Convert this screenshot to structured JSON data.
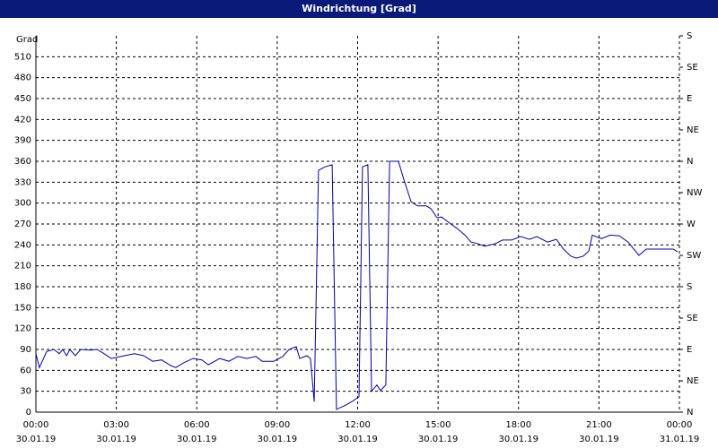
{
  "chart_data": {
    "type": "line",
    "title": "Windrichtung [Grad]",
    "ylabel": "Grad",
    "color": "#0000b0",
    "grid": true,
    "xlim": [
      0,
      24
    ],
    "xticks": [
      {
        "value": 0,
        "label": "00:00"
      },
      {
        "value": 3,
        "label": "03:00"
      },
      {
        "value": 6,
        "label": "06:00"
      },
      {
        "value": 9,
        "label": "09:00"
      },
      {
        "value": 12,
        "label": "12:00"
      },
      {
        "value": 15,
        "label": "15:00"
      },
      {
        "value": 18,
        "label": "18:00"
      },
      {
        "value": 21,
        "label": "21:00"
      },
      {
        "value": 24,
        "label": "00:00"
      }
    ],
    "xtick_dates": [
      "30.01.19",
      "30.01.19",
      "30.01.19",
      "30.01.19",
      "30.01.19",
      "30.01.19",
      "30.01.19",
      "30.01.19",
      "31.01.19"
    ],
    "ylim": [
      0,
      540
    ],
    "yticks": [
      0,
      30,
      60,
      90,
      120,
      150,
      180,
      210,
      240,
      270,
      300,
      330,
      360,
      390,
      420,
      450,
      480,
      510
    ],
    "y2lim": [
      0,
      540
    ],
    "y2ticks": [
      {
        "value": 0,
        "label": "N"
      },
      {
        "value": 45,
        "label": "NE"
      },
      {
        "value": 90,
        "label": "E"
      },
      {
        "value": 135,
        "label": "SE"
      },
      {
        "value": 180,
        "label": "S"
      },
      {
        "value": 225,
        "label": "SW"
      },
      {
        "value": 270,
        "label": "W"
      },
      {
        "value": 315,
        "label": "NW"
      },
      {
        "value": 360,
        "label": "N"
      },
      {
        "value": 405,
        "label": "NE"
      },
      {
        "value": 450,
        "label": "E"
      },
      {
        "value": 495,
        "label": "SE"
      },
      {
        "value": 540,
        "label": "S"
      }
    ],
    "x": [
      0,
      0.13,
      0.4,
      0.67,
      0.87,
      1.0,
      1.14,
      1.27,
      1.47,
      1.67,
      2.01,
      2.28,
      2.54,
      2.81,
      3.18,
      3.68,
      4.02,
      4.35,
      4.69,
      5.02,
      5.22,
      5.52,
      5.86,
      6.19,
      6.43,
      6.86,
      7.2,
      7.53,
      7.87,
      8.2,
      8.44,
      8.87,
      9.21,
      9.44,
      9.71,
      9.84,
      10.11,
      10.24,
      10.38,
      10.54,
      10.78,
      11.05,
      11.21,
      11.55,
      11.78,
      12.05,
      12.18,
      12.38,
      12.52,
      12.72,
      12.85,
      13.05,
      13.19,
      13.52,
      13.72,
      13.99,
      14.23,
      14.56,
      14.73,
      14.96,
      15.13,
      15.4,
      15.73,
      16.0,
      16.23,
      16.47,
      16.74,
      17.14,
      17.41,
      17.74,
      18.08,
      18.41,
      18.68,
      19.08,
      19.41,
      19.68,
      19.95,
      20.15,
      20.42,
      20.62,
      20.75,
      21.09,
      21.42,
      21.76,
      22.09,
      22.49,
      22.76,
      23.26,
      23.77,
      23.93
    ],
    "values": [
      84,
      64,
      87,
      90,
      84,
      90,
      81,
      90,
      81,
      90,
      89,
      90,
      84,
      77,
      80,
      84,
      81,
      73,
      75,
      67,
      64,
      71,
      77,
      75,
      68,
      77,
      73,
      80,
      77,
      80,
      73,
      73,
      80,
      90,
      94,
      77,
      81,
      77,
      15,
      347,
      352,
      355,
      4,
      10,
      15,
      22,
      352,
      355,
      30,
      39,
      31,
      39,
      360,
      360,
      334,
      302,
      296,
      296,
      292,
      279,
      280,
      272,
      263,
      254,
      244,
      242,
      238,
      242,
      247,
      247,
      252,
      248,
      252,
      244,
      248,
      234,
      224,
      221,
      224,
      231,
      254,
      249,
      254,
      253,
      244,
      225,
      234,
      234,
      234,
      230
    ]
  }
}
